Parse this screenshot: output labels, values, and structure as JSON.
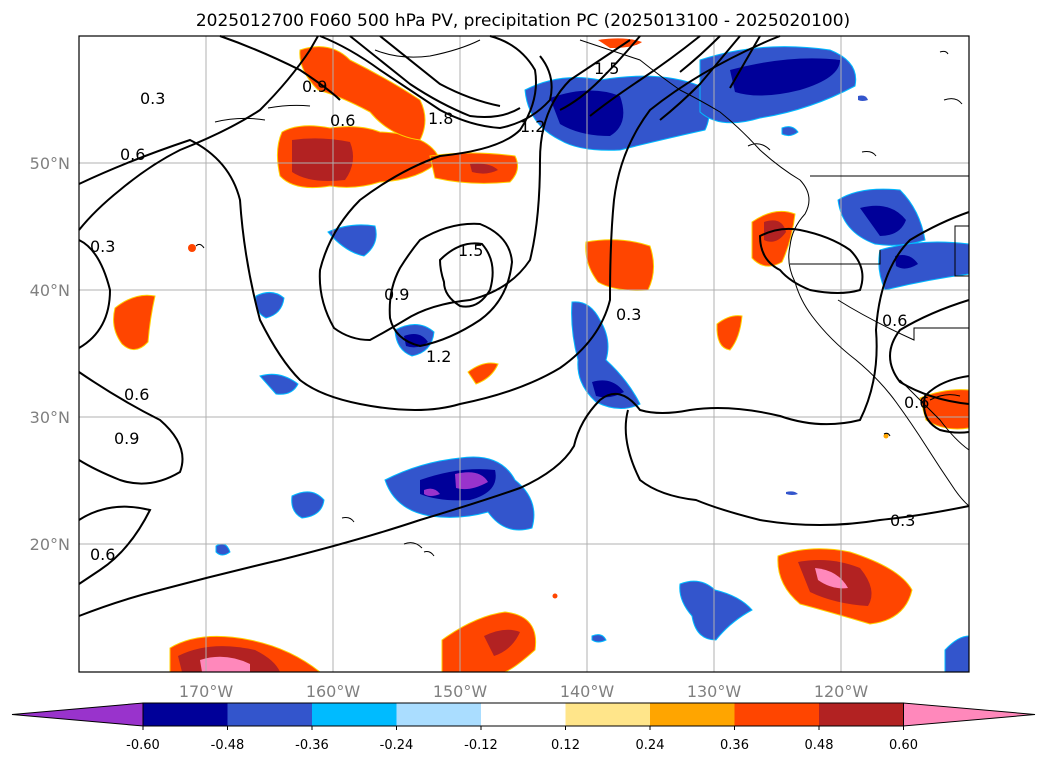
{
  "title": "2025012700 F060 500 hPa PV, precipitation PC (2025013100 - 2025020100)",
  "map": {
    "lon_ticks": [
      "170°W",
      "160°W",
      "150°W",
      "140°W",
      "130°W",
      "120°W"
    ],
    "lat_ticks": [
      "50°N",
      "40°N",
      "30°N",
      "20°N"
    ],
    "contour_labels": [
      "0.3",
      "0.6",
      "0.9",
      "1.2",
      "1.5",
      "1.8"
    ]
  },
  "colorbar": {
    "ticks": [
      "-0.60",
      "-0.48",
      "-0.36",
      "-0.24",
      "-0.12",
      "0.12",
      "0.24",
      "0.36",
      "0.48",
      "0.60"
    ],
    "colors": [
      "#9933cc",
      "#000099",
      "#3355cc",
      "#00bbff",
      "#aaddff",
      "#ffffff",
      "#ffe58a",
      "#ffa500",
      "#ff4500",
      "#b22222",
      "#ff88bb"
    ]
  }
}
